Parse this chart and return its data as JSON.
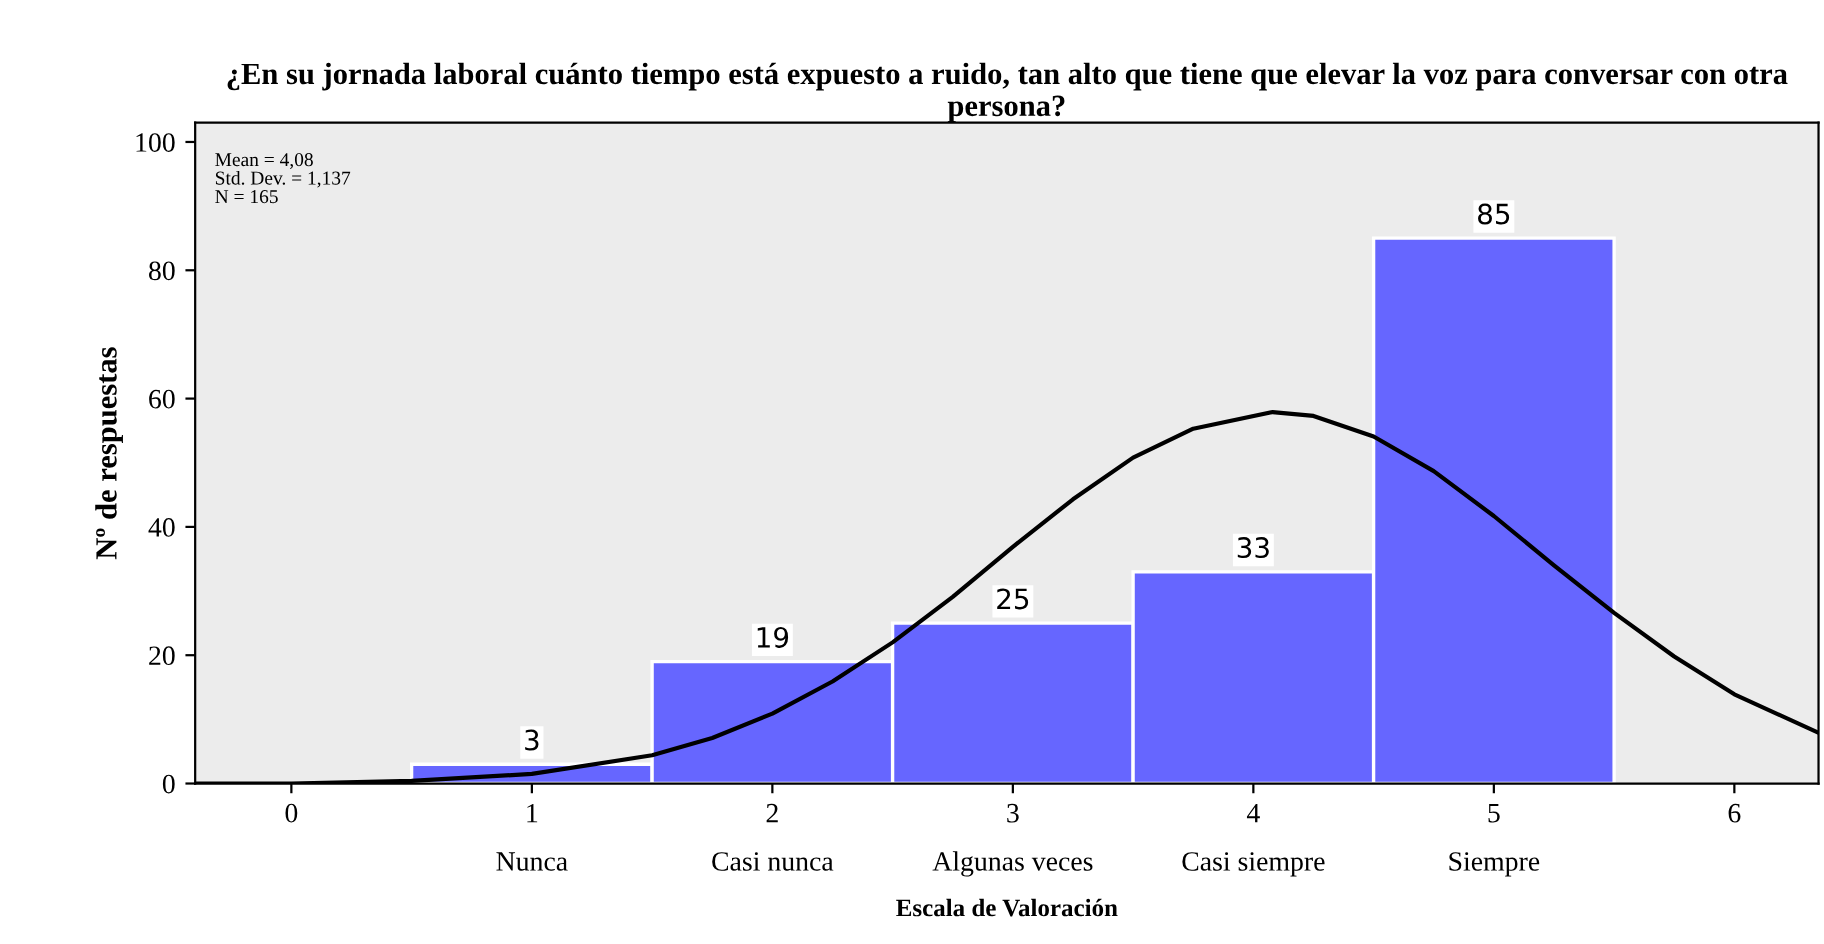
{
  "chart_data": {
    "type": "histogram",
    "title": "¿En su jornada laboral cuánto tiempo está expuesto a ruido, tan alto que tiene que elevar la voz para conversar con otra persona?",
    "xlabel": "Escala de Valoración",
    "ylabel": "Nº de respuestas",
    "bins": [
      0.5,
      1.5,
      2.5,
      3.5,
      4.5,
      5.5
    ],
    "values": [
      3,
      19,
      25,
      33,
      85
    ],
    "color": "#6666ff",
    "value_labels": [
      "3",
      "19",
      "25",
      "33",
      "85"
    ],
    "series": [
      {
        "type": "line",
        "color": "#000000",
        "x": [
          -0.4,
          0,
          0.5,
          1,
          1.5,
          1.75,
          2,
          2.25,
          2.5,
          2.75,
          3,
          3.25,
          3.5,
          3.75,
          4.08,
          4.25,
          4.5,
          4.75,
          5,
          5.25,
          5.5,
          5.75,
          6,
          6.35
        ],
        "values": [
          0,
          0,
          0.4,
          1.5,
          4.4,
          7.1,
          10.9,
          15.9,
          22,
          29.1,
          36.9,
          44.3,
          50.8,
          55.3,
          57.9,
          57.3,
          54.1,
          48.7,
          41.7,
          34,
          26.6,
          19.8,
          13.9,
          7.9
        ]
      }
    ],
    "xlim": [
      -0.4,
      6.35
    ],
    "xticks": [
      0,
      {
        "value": 1,
        "label": "1\nNunca"
      },
      {
        "value": 2,
        "label": "2\nCasi nunca"
      },
      {
        "value": 3,
        "label": "3\nAlgunas veces"
      },
      {
        "value": 4,
        "label": "4\nCasi siempre"
      },
      {
        "value": 5,
        "label": "5\nSiempre"
      },
      6
    ],
    "ylim": [
      0,
      103
    ],
    "yticks": [
      0,
      20,
      40,
      60,
      80,
      100
    ],
    "grid": false,
    "legend": false,
    "annotations": [
      "Mean = 4,08",
      "Std. Dev. = 1,137",
      "N = 165"
    ]
  }
}
